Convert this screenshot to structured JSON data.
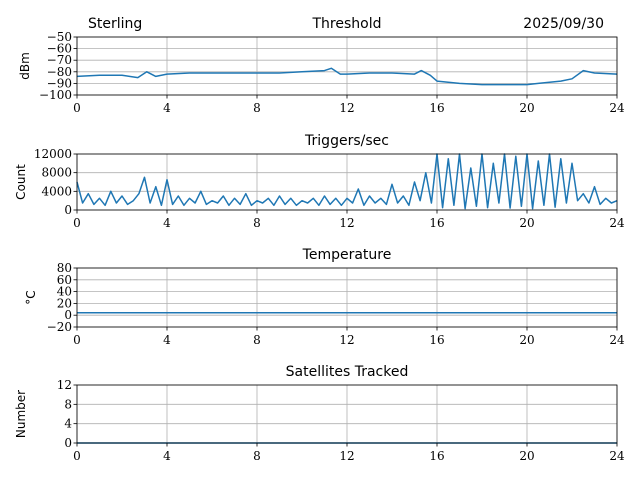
{
  "header": {
    "station": "Sterling",
    "date": "2025/09/30"
  },
  "chart_data": [
    {
      "type": "line",
      "title": "Threshold",
      "xlabel": "",
      "ylabel": "dBm",
      "xlim": [
        0,
        24
      ],
      "ylim": [
        -100,
        -50
      ],
      "xticks": [
        0,
        4,
        8,
        12,
        16,
        20,
        24
      ],
      "yticks": [
        -100,
        -90,
        -80,
        -70,
        -60,
        -50
      ],
      "ytick_labels": [
        "−100",
        "−90",
        "−80",
        "−70",
        "−60",
        "−50"
      ],
      "grid": true,
      "color": "#1f77b4",
      "x": [
        0,
        1,
        2,
        2.7,
        3.1,
        3.5,
        4,
        5,
        6,
        7,
        8,
        9,
        10,
        11,
        11.3,
        11.7,
        12,
        13,
        14,
        15,
        15.3,
        15.7,
        16,
        17,
        18,
        19,
        20,
        20.5,
        21,
        21.5,
        22,
        22.5,
        23,
        24
      ],
      "y": [
        -84,
        -83,
        -83,
        -85,
        -80,
        -84,
        -82,
        -81,
        -81,
        -81,
        -81,
        -81,
        -80,
        -79,
        -77,
        -82,
        -82,
        -81,
        -81,
        -82,
        -79,
        -83,
        -88,
        -90,
        -91,
        -91,
        -91,
        -90,
        -89,
        -88,
        -86,
        -79,
        -81,
        -82
      ]
    },
    {
      "type": "line",
      "title": "Triggers/sec",
      "xlabel": "",
      "ylabel": "Count",
      "xlim": [
        0,
        24
      ],
      "ylim": [
        0,
        12000
      ],
      "xticks": [
        0,
        4,
        8,
        12,
        16,
        20,
        24
      ],
      "yticks": [
        0,
        4000,
        8000,
        12000
      ],
      "ytick_labels": [
        "0",
        "4000",
        "8000",
        "12000"
      ],
      "grid": true,
      "color": "#1f77b4",
      "x_step": 0.25,
      "y": [
        6000,
        1500,
        3500,
        1200,
        2500,
        1000,
        4000,
        1500,
        3000,
        1200,
        2000,
        3500,
        7000,
        1500,
        5000,
        1000,
        6500,
        1200,
        3000,
        1000,
        2500,
        1500,
        4000,
        1200,
        2000,
        1500,
        3000,
        1000,
        2500,
        1200,
        3500,
        1000,
        2000,
        1500,
        2500,
        1000,
        3000,
        1200,
        2500,
        1000,
        2000,
        1500,
        2500,
        1000,
        3000,
        1200,
        2500,
        1000,
        2500,
        1500,
        4500,
        1000,
        3000,
        1500,
        2500,
        1200,
        5500,
        1500,
        3000,
        1000,
        6000,
        2000,
        8000,
        1500,
        12000,
        500,
        11000,
        1000,
        12000,
        300,
        9000,
        800,
        12000,
        500,
        10000,
        1500,
        12000,
        400,
        11500,
        800,
        12000,
        300,
        10500,
        1000,
        12000,
        600,
        11000,
        1500,
        10000,
        2000,
        3500,
        1500,
        5000,
        1200,
        2500,
        1500,
        2000
      ],
      "line_width": 1.5
    },
    {
      "type": "line",
      "title": "Temperature",
      "xlabel": "",
      "ylabel": "°C",
      "xlim": [
        0,
        24
      ],
      "ylim": [
        -20,
        80
      ],
      "xticks": [
        0,
        4,
        8,
        12,
        16,
        20,
        24
      ],
      "yticks": [
        -20,
        0,
        20,
        40,
        60,
        80
      ],
      "ytick_labels": [
        "−20",
        "0",
        "20",
        "40",
        "60",
        "80"
      ],
      "grid": true,
      "color": "#1f77b4",
      "x": [
        0,
        24
      ],
      "y": [
        4,
        4
      ]
    },
    {
      "type": "line",
      "title": "Satellites Tracked",
      "xlabel": "",
      "ylabel": "Number",
      "xlim": [
        0,
        24
      ],
      "ylim": [
        0,
        12
      ],
      "xticks": [
        0,
        4,
        8,
        12,
        16,
        20,
        24
      ],
      "yticks": [
        0,
        4,
        8,
        12
      ],
      "ytick_labels": [
        "0",
        "4",
        "8",
        "12"
      ],
      "grid": true,
      "color": "#1f77b4",
      "x": [
        0,
        24
      ],
      "y": [
        0,
        0
      ]
    }
  ]
}
